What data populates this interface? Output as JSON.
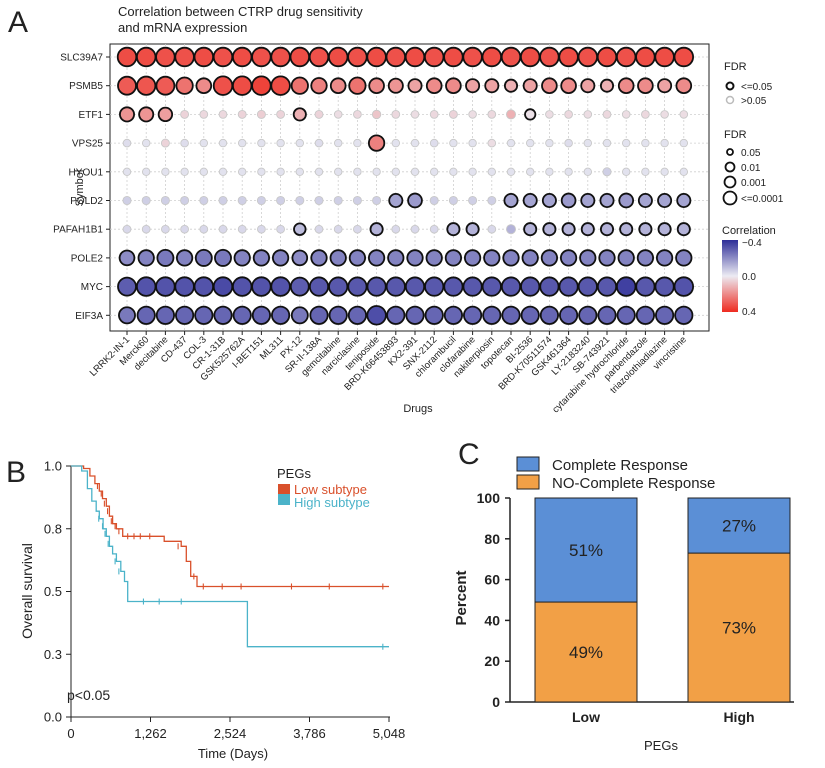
{
  "panel_labels": {
    "a": "A",
    "b": "B",
    "c": "C"
  },
  "colors": {
    "neg": "#2d2d98",
    "mid": "#ecebf3",
    "pos": "#ee2b20",
    "low_line": "#d9502b",
    "high_line": "#4bb3c9",
    "complete": "#5b8fd6",
    "nocomplete": "#f2a046"
  },
  "chart_data": [
    {
      "type": "dotplot",
      "title_line1": "Correlation between CTRP drug sensitivity",
      "title_line2": "and mRNA expression",
      "xlabel": "Drugs",
      "ylabel": "Symbol",
      "genes": [
        "SLC39A7",
        "PSMB5",
        "ETF1",
        "VPS25",
        "HYOU1",
        "POLD2",
        "PAFAH1B1",
        "POLE2",
        "MYC",
        "EIF3A"
      ],
      "drugs": [
        "LRRK2-IN-1",
        "Merck60",
        "decitabine",
        "CD-437",
        "COL-3",
        "CR-1-31B",
        "GSK525762A",
        "I-BET151",
        "ML311",
        "PX-12",
        "SR-II-138A",
        "gemcitabine",
        "narciclasine",
        "teniposide",
        "BRD-K66453893",
        "KX2-391",
        "SNX-2112",
        "chlorambucil",
        "clofarabine",
        "nakiterpiosin",
        "topotecan",
        "BI-2536",
        "BRD-K70511574",
        "GSK461364",
        "LY-2183240",
        "SB-743921",
        "cytarabine hydrochloride",
        "parbendazole",
        "triazolothiadiazine",
        "vincristine"
      ],
      "correlation": [
        [
          0.33,
          0.33,
          0.32,
          0.32,
          0.33,
          0.32,
          0.33,
          0.32,
          0.32,
          0.33,
          0.32,
          0.33,
          0.32,
          0.33,
          0.32,
          0.33,
          0.32,
          0.33,
          0.32,
          0.33,
          0.32,
          0.33,
          0.32,
          0.33,
          0.32,
          0.33,
          0.32,
          0.33,
          0.33,
          0.33
        ],
        [
          0.3,
          0.31,
          0.3,
          0.25,
          0.2,
          0.32,
          0.33,
          0.35,
          0.33,
          0.25,
          0.22,
          0.2,
          0.25,
          0.2,
          0.18,
          0.15,
          0.2,
          0.2,
          0.15,
          0.15,
          0.12,
          0.15,
          0.2,
          0.2,
          0.15,
          0.12,
          0.2,
          0.2,
          0.15,
          0.2
        ],
        [
          0.18,
          0.18,
          0.16,
          0.05,
          0.04,
          0.04,
          0.05,
          0.06,
          0.05,
          0.12,
          0.05,
          0.03,
          0.04,
          0.08,
          0.04,
          0.03,
          0.04,
          0.05,
          0.03,
          0.04,
          0.12,
          0.02,
          0.03,
          0.04,
          0.03,
          0.04,
          0.03,
          0.04,
          0.03,
          0.03
        ],
        [
          -0.03,
          -0.02,
          0.05,
          -0.03,
          -0.02,
          -0.02,
          -0.02,
          -0.02,
          -0.02,
          -0.02,
          -0.03,
          -0.02,
          -0.02,
          0.22,
          -0.02,
          -0.02,
          -0.03,
          -0.02,
          -0.02,
          0.03,
          -0.02,
          -0.02,
          -0.02,
          -0.03,
          -0.02,
          -0.02,
          -0.02,
          -0.02,
          -0.02,
          -0.02
        ],
        [
          -0.02,
          -0.02,
          -0.02,
          -0.02,
          -0.02,
          -0.02,
          -0.02,
          -0.02,
          -0.02,
          -0.02,
          -0.02,
          -0.02,
          -0.02,
          -0.02,
          -0.02,
          -0.02,
          -0.02,
          -0.02,
          -0.02,
          -0.02,
          -0.02,
          -0.02,
          -0.02,
          -0.02,
          -0.02,
          -0.06,
          -0.02,
          -0.02,
          -0.02,
          -0.02
        ],
        [
          -0.06,
          -0.06,
          -0.06,
          -0.06,
          -0.06,
          -0.06,
          -0.06,
          -0.06,
          -0.06,
          -0.06,
          -0.06,
          -0.06,
          -0.06,
          -0.06,
          -0.15,
          -0.17,
          -0.06,
          -0.06,
          -0.06,
          -0.06,
          -0.15,
          -0.15,
          -0.15,
          -0.17,
          -0.15,
          -0.15,
          -0.17,
          -0.15,
          -0.15,
          -0.15
        ],
        [
          -0.04,
          -0.04,
          -0.04,
          -0.04,
          -0.04,
          -0.04,
          -0.04,
          -0.04,
          -0.04,
          -0.1,
          -0.04,
          -0.04,
          -0.04,
          -0.12,
          -0.04,
          -0.04,
          -0.04,
          -0.12,
          -0.12,
          -0.04,
          -0.12,
          -0.12,
          -0.12,
          -0.12,
          -0.12,
          -0.12,
          -0.12,
          -0.12,
          -0.12,
          -0.12
        ],
        [
          -0.2,
          -0.22,
          -0.24,
          -0.22,
          -0.24,
          -0.24,
          -0.22,
          -0.22,
          -0.22,
          -0.2,
          -0.22,
          -0.22,
          -0.22,
          -0.22,
          -0.22,
          -0.22,
          -0.22,
          -0.22,
          -0.22,
          -0.22,
          -0.22,
          -0.22,
          -0.22,
          -0.22,
          -0.22,
          -0.22,
          -0.22,
          -0.22,
          -0.22,
          -0.22
        ],
        [
          -0.3,
          -0.32,
          -0.32,
          -0.32,
          -0.32,
          -0.34,
          -0.32,
          -0.32,
          -0.32,
          -0.3,
          -0.31,
          -0.31,
          -0.31,
          -0.31,
          -0.31,
          -0.31,
          -0.31,
          -0.31,
          -0.31,
          -0.31,
          -0.31,
          -0.31,
          -0.31,
          -0.31,
          -0.31,
          -0.31,
          -0.36,
          -0.31,
          -0.31,
          -0.32
        ],
        [
          -0.24,
          -0.28,
          -0.28,
          -0.28,
          -0.28,
          -0.28,
          -0.28,
          -0.28,
          -0.28,
          -0.24,
          -0.28,
          -0.28,
          -0.28,
          -0.33,
          -0.28,
          -0.28,
          -0.28,
          -0.28,
          -0.28,
          -0.28,
          -0.28,
          -0.28,
          -0.28,
          -0.28,
          -0.28,
          -0.28,
          -0.28,
          -0.28,
          -0.28,
          -0.28
        ]
      ],
      "sig_flags": [
        "111111111111111111111111111111",
        "111111111111111111111111111111",
        "111000000100000000000100000000",
        "000000000000010000000000000000",
        "000000000000000000000000000000",
        "000000000000001100001111111111",
        "000000000100010001100111111111",
        "111111111111111111111111111111",
        "111111111111111111111111111111",
        "111111111111111111111111111111"
      ],
      "legend": {
        "fdr_title": "FDR",
        "sig_labels": [
          "<=0.05",
          ">0.05"
        ],
        "size_labels": [
          "0.05",
          "0.01",
          "0.001",
          "<=0.0001"
        ],
        "corr_title": "Correlation",
        "corr_ticks": [
          "−0.4",
          "0.0",
          "0.4"
        ],
        "corr_range": [
          -0.4,
          0.4
        ]
      }
    },
    {
      "type": "line",
      "subtype": "kaplan-meier",
      "xlabel": "Time (Days)",
      "ylabel": "Overall survival",
      "xticks": [
        "0",
        "1,262",
        "2,524",
        "3,786",
        "5,048"
      ],
      "xtick_values": [
        0,
        1262,
        2524,
        3786,
        5048
      ],
      "yticks": [
        "0.0",
        "0.3",
        "0.5",
        "0.8",
        "1.0"
      ],
      "ytick_values": [
        0.0,
        0.25,
        0.5,
        0.75,
        1.0
      ],
      "xlim": [
        0,
        5048
      ],
      "ylim": [
        0,
        1
      ],
      "legend_title": "PEGs",
      "pvalue_text": "p<0.05",
      "series": [
        {
          "name": "Low subtype",
          "color_key": "low_line",
          "points": [
            [
              0,
              1.0
            ],
            [
              200,
              0.99
            ],
            [
              300,
              0.96
            ],
            [
              380,
              0.93
            ],
            [
              450,
              0.9
            ],
            [
              500,
              0.87
            ],
            [
              560,
              0.84
            ],
            [
              610,
              0.8
            ],
            [
              660,
              0.77
            ],
            [
              720,
              0.75
            ],
            [
              820,
              0.72
            ],
            [
              1400,
              0.72
            ],
            [
              1480,
              0.7
            ],
            [
              1750,
              0.68
            ],
            [
              1830,
              0.62
            ],
            [
              1900,
              0.56
            ],
            [
              2000,
              0.52
            ],
            [
              5048,
              0.52
            ]
          ],
          "censors": [
            [
              420,
              0.92
            ],
            [
              480,
              0.89
            ],
            [
              530,
              0.85
            ],
            [
              580,
              0.82
            ],
            [
              640,
              0.78
            ],
            [
              700,
              0.76
            ],
            [
              760,
              0.74
            ],
            [
              900,
              0.72
            ],
            [
              1000,
              0.72
            ],
            [
              1100,
              0.72
            ],
            [
              1250,
              0.72
            ],
            [
              1700,
              0.68
            ],
            [
              1950,
              0.56
            ],
            [
              2100,
              0.52
            ],
            [
              2400,
              0.52
            ],
            [
              2700,
              0.52
            ],
            [
              3500,
              0.52
            ],
            [
              4100,
              0.52
            ],
            [
              4950,
              0.52
            ]
          ]
        },
        {
          "name": "High subtype",
          "color_key": "high_line",
          "points": [
            [
              0,
              1.0
            ],
            [
              170,
              0.98
            ],
            [
              260,
              0.91
            ],
            [
              330,
              0.86
            ],
            [
              400,
              0.82
            ],
            [
              450,
              0.79
            ],
            [
              510,
              0.75
            ],
            [
              560,
              0.72
            ],
            [
              610,
              0.68
            ],
            [
              660,
              0.65
            ],
            [
              720,
              0.62
            ],
            [
              790,
              0.58
            ],
            [
              850,
              0.54
            ],
            [
              900,
              0.46
            ],
            [
              2050,
              0.46
            ],
            [
              2800,
              0.28
            ],
            [
              5048,
              0.28
            ]
          ],
          "censors": [
            [
              440,
              0.79
            ],
            [
              500,
              0.76
            ],
            [
              540,
              0.73
            ],
            [
              590,
              0.69
            ],
            [
              700,
              0.62
            ],
            [
              760,
              0.58
            ],
            [
              1150,
              0.46
            ],
            [
              1400,
              0.46
            ],
            [
              1750,
              0.46
            ],
            [
              4950,
              0.28
            ]
          ]
        }
      ]
    },
    {
      "type": "bar",
      "subtype": "stacked-percent",
      "categories": [
        "Low",
        "High"
      ],
      "xlabel": "PEGs",
      "ylabel": "Percent",
      "ylim": [
        0,
        100
      ],
      "yticks": [
        0,
        20,
        40,
        60,
        80,
        100
      ],
      "series": [
        {
          "name": "NO-Complete Response",
          "color_key": "nocomplete",
          "values": [
            49,
            73
          ],
          "labels": [
            "49%",
            "73%"
          ]
        },
        {
          "name": "Complete Response",
          "color_key": "complete",
          "values": [
            51,
            27
          ],
          "labels": [
            "51%",
            "27%"
          ]
        }
      ],
      "legend_order": [
        "Complete Response",
        "NO-Complete Response"
      ]
    }
  ]
}
